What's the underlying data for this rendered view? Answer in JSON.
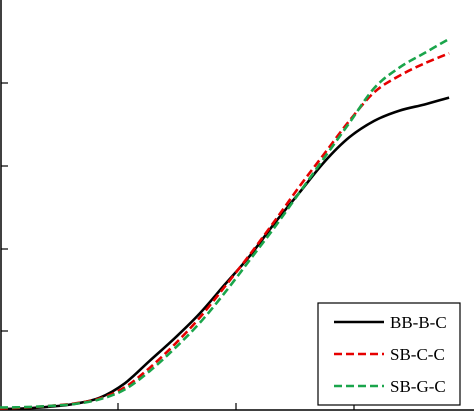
{
  "chart_data": {
    "type": "line",
    "title": "",
    "xlabel": "",
    "ylabel": "",
    "xlim": [
      0,
      9.5
    ],
    "ylim": [
      0,
      1.0
    ],
    "grid": false,
    "legend_position": "bottom-right",
    "series": [
      {
        "name": "BB-B-C",
        "color": "#000000",
        "dash": "solid",
        "points": [
          [
            0.0,
            0.002
          ],
          [
            0.5,
            0.004
          ],
          [
            1.0,
            0.008
          ],
          [
            1.5,
            0.015
          ],
          [
            2.0,
            0.03
          ],
          [
            2.5,
            0.065
          ],
          [
            3.0,
            0.12
          ],
          [
            3.5,
            0.175
          ],
          [
            4.0,
            0.235
          ],
          [
            4.5,
            0.305
          ],
          [
            5.0,
            0.375
          ],
          [
            5.5,
            0.455
          ],
          [
            6.0,
            0.53
          ],
          [
            6.5,
            0.605
          ],
          [
            7.0,
            0.665
          ],
          [
            7.5,
            0.705
          ],
          [
            8.0,
            0.73
          ],
          [
            8.5,
            0.745
          ],
          [
            9.0,
            0.762
          ]
        ]
      },
      {
        "name": "SB-C-C",
        "color": "#e60000",
        "dash": "dashed",
        "points": [
          [
            0.0,
            0.004
          ],
          [
            0.5,
            0.006
          ],
          [
            1.0,
            0.01
          ],
          [
            1.5,
            0.016
          ],
          [
            2.0,
            0.028
          ],
          [
            2.5,
            0.055
          ],
          [
            3.0,
            0.103
          ],
          [
            3.5,
            0.16
          ],
          [
            4.0,
            0.225
          ],
          [
            4.5,
            0.3
          ],
          [
            5.0,
            0.378
          ],
          [
            5.5,
            0.46
          ],
          [
            6.0,
            0.545
          ],
          [
            6.5,
            0.625
          ],
          [
            7.0,
            0.705
          ],
          [
            7.5,
            0.775
          ],
          [
            8.0,
            0.815
          ],
          [
            8.5,
            0.845
          ],
          [
            9.0,
            0.87
          ]
        ]
      },
      {
        "name": "SB-G-C",
        "color": "#1aa54b",
        "dash": "dashed",
        "points": [
          [
            0.0,
            0.006
          ],
          [
            0.5,
            0.007
          ],
          [
            1.0,
            0.01
          ],
          [
            1.5,
            0.015
          ],
          [
            2.0,
            0.026
          ],
          [
            2.5,
            0.05
          ],
          [
            3.0,
            0.095
          ],
          [
            3.5,
            0.15
          ],
          [
            4.0,
            0.212
          ],
          [
            4.5,
            0.285
          ],
          [
            5.0,
            0.365
          ],
          [
            5.5,
            0.445
          ],
          [
            6.0,
            0.53
          ],
          [
            6.5,
            0.615
          ],
          [
            7.0,
            0.7
          ],
          [
            7.5,
            0.785
          ],
          [
            8.0,
            0.835
          ],
          [
            8.5,
            0.87
          ],
          [
            9.0,
            0.905
          ]
        ]
      }
    ]
  }
}
